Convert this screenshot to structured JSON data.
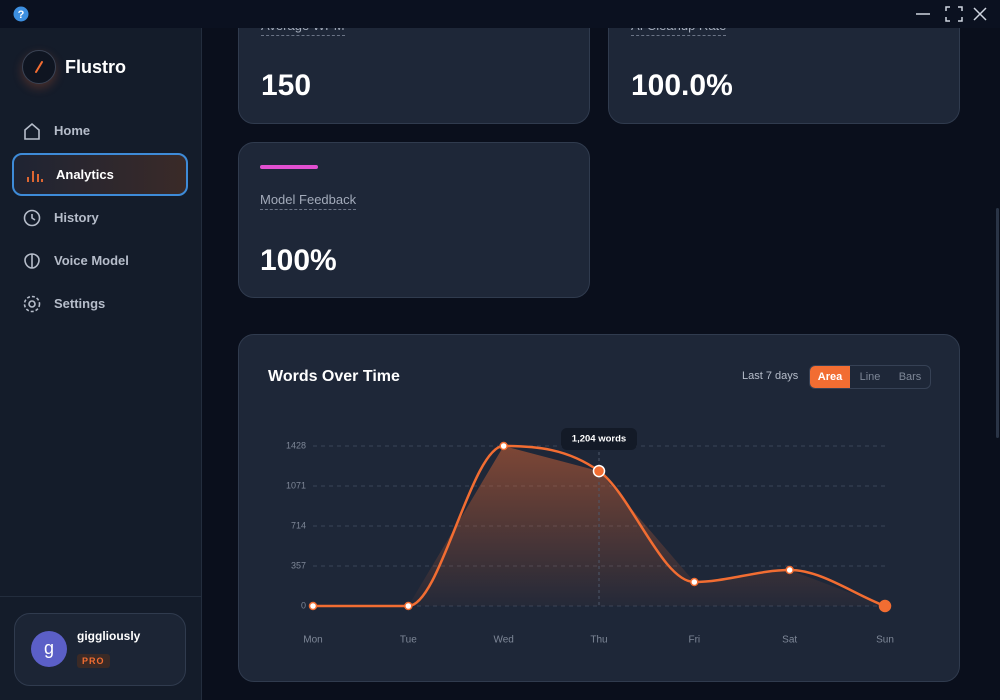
{
  "sidebar": {
    "brand": "Flustro",
    "nav": [
      "Home",
      "Analytics",
      "History",
      "Voice Model",
      "Settings"
    ],
    "user": {
      "initial": "g",
      "name": "giggliously",
      "badge": "PRO"
    }
  },
  "stats": [
    {
      "label": "Average WPM",
      "value": "150"
    },
    {
      "label": "AI Cleanup Rate",
      "value": "100.0%"
    },
    {
      "label": "Model Feedback",
      "value": "100%"
    }
  ],
  "chart_data": {
    "type": "area",
    "title": "Words Over Time",
    "range": "Last 7 days",
    "modes": [
      "Area",
      "Line",
      "Bars"
    ],
    "categories": [
      "Mon",
      "Tue",
      "Wed",
      "Thu",
      "Fri",
      "Sat",
      "Sun"
    ],
    "values": [
      0,
      0,
      1428,
      1204,
      214,
      321,
      0
    ],
    "value_labels": [
      null,
      null,
      null,
      "1,204 words",
      null,
      null,
      null
    ],
    "color": "#f26d32",
    "ylim": [
      0,
      1428
    ],
    "yticks": [
      0,
      357,
      714,
      1071,
      1428
    ],
    "grid": true
  }
}
